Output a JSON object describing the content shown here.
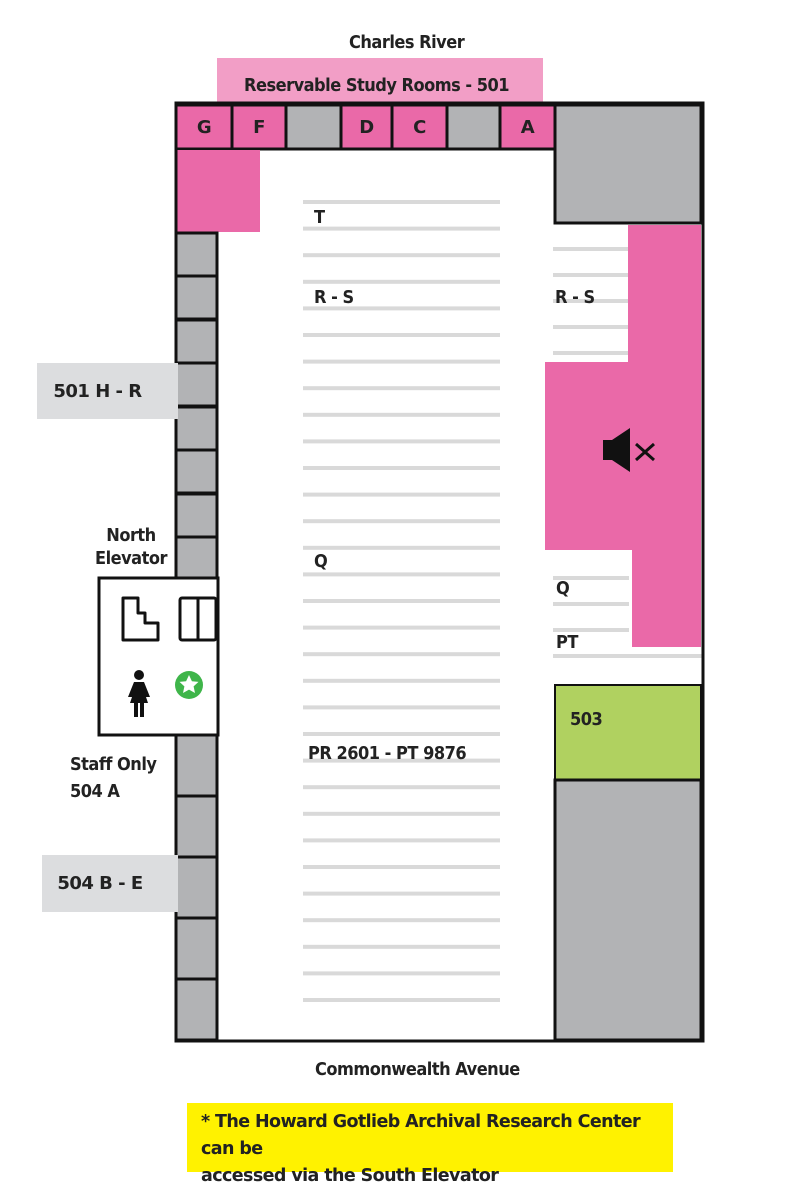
{
  "top_label": "Charles River",
  "bottom_label": "Commonwealth Avenue",
  "study_rooms": {
    "label": "Reservable Study Rooms - 501",
    "rooms": [
      "G",
      "F",
      "",
      "D",
      "C",
      "",
      "A"
    ]
  },
  "stack_labels": {
    "t": "T",
    "rs_center": "R - S",
    "rs_right": "R - S",
    "q_center": "Q",
    "q_right": "Q",
    "pt_right": "PT",
    "range": "PR 2601 - PT 9876"
  },
  "rooms": {
    "h_r": "501 H - R",
    "b_e": "504 B - E",
    "staff": "Staff Only",
    "staff_room": "504 A",
    "r503": "503"
  },
  "elevator": {
    "label_line1": "North",
    "label_line2": "Elevator"
  },
  "icons": [
    "stairs-icon",
    "elevator-icon",
    "womens-restroom-icon",
    "accessible-star-icon",
    "quiet-zone-muted-speaker-icon"
  ],
  "note": {
    "line1": "* The Howard Gotlieb Archival Research Center can be",
    "line2": "accessed via the South Elevator"
  },
  "colors": {
    "pink": "#ea69a8",
    "light_pink": "#f29ec6",
    "gray": "#b2b3b5",
    "green": "#b0d160",
    "yellow": "#fff200",
    "star_green": "#3fb54a"
  }
}
